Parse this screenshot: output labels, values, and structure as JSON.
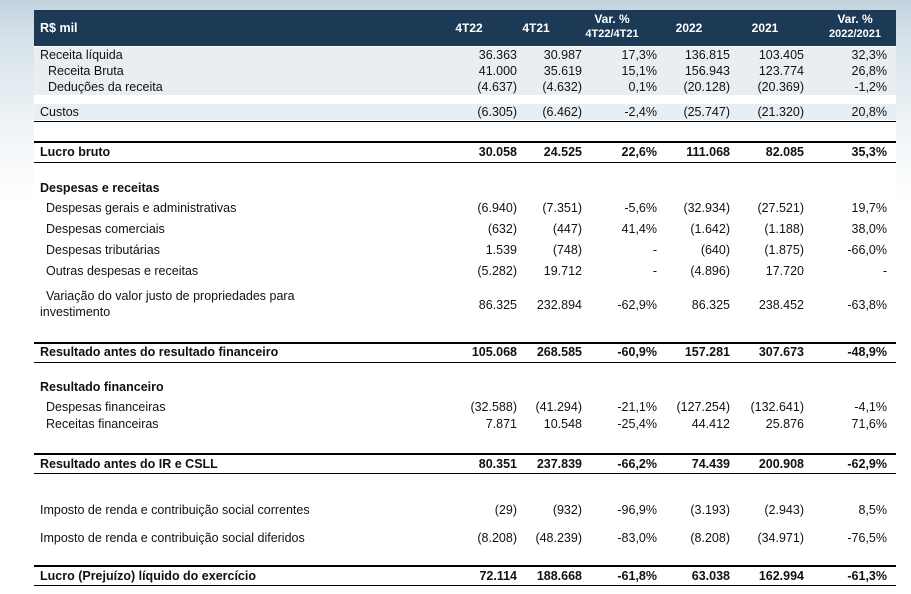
{
  "header": {
    "label": "R$ mil",
    "col1": "4T22",
    "col2": "4T21",
    "col3a": "Var. %",
    "col3b": "4T22/4T21",
    "col4": "2022",
    "col5": "2021",
    "col6a": "Var. %",
    "col6b": "2022/2021"
  },
  "rows": [
    {
      "label": "Receita líquida",
      "v": [
        "36.363",
        "30.987",
        "17,3%",
        "136.815",
        "103.405",
        "32,3%"
      ]
    },
    {
      "label": "Receita Bruta",
      "v": [
        "41.000",
        "35.619",
        "15,1%",
        "156.943",
        "123.774",
        "26,8%"
      ]
    },
    {
      "label": "Deduções da receita",
      "v": [
        "(4.637)",
        "(4.632)",
        "0,1%",
        "(20.128)",
        "(20.369)",
        "-1,2%"
      ]
    },
    {
      "label": "Custos",
      "v": [
        "(6.305)",
        "(6.462)",
        "-2,4%",
        "(25.747)",
        "(21.320)",
        "20,8%"
      ]
    },
    {
      "label": "Lucro bruto",
      "v": [
        "30.058",
        "24.525",
        "22,6%",
        "111.068",
        "82.085",
        "35,3%"
      ]
    },
    {
      "label": "Despesas e receitas",
      "v": [
        "",
        "",
        "",
        "",
        "",
        ""
      ]
    },
    {
      "label": "Despesas gerais e administrativas",
      "v": [
        "(6.940)",
        "(7.351)",
        "-5,6%",
        "(32.934)",
        "(27.521)",
        "19,7%"
      ]
    },
    {
      "label": "Despesas comerciais",
      "v": [
        "(632)",
        "(447)",
        "41,4%",
        "(1.642)",
        "(1.188)",
        "38,0%"
      ]
    },
    {
      "label": "Despesas tributárias",
      "v": [
        "1.539",
        "(748)",
        "-",
        "(640)",
        "(1.875)",
        "-66,0%"
      ]
    },
    {
      "label": "Outras despesas e receitas",
      "v": [
        "(5.282)",
        "19.712",
        "-",
        "(4.896)",
        "17.720",
        "-"
      ]
    },
    {
      "label": "Variação do valor justo de propriedades para",
      "label2": "investimento",
      "v": [
        "86.325",
        "232.894",
        "-62,9%",
        "86.325",
        "238.452",
        "-63,8%"
      ]
    },
    {
      "label": "Resultado antes do resultado financeiro",
      "v": [
        "105.068",
        "268.585",
        "-60,9%",
        "157.281",
        "307.673",
        "-48,9%"
      ]
    },
    {
      "label": "Resultado financeiro",
      "v": [
        "",
        "",
        "",
        "",
        "",
        ""
      ]
    },
    {
      "label": "Despesas financeiras",
      "v": [
        "(32.588)",
        "(41.294)",
        "-21,1%",
        "(127.254)",
        "(132.641)",
        "-4,1%"
      ]
    },
    {
      "label": "Receitas financeiras",
      "v": [
        "7.871",
        "10.548",
        "-25,4%",
        "44.412",
        "25.876",
        "71,6%"
      ]
    },
    {
      "label": "Resultado antes do IR e CSLL",
      "v": [
        "80.351",
        "237.839",
        "-66,2%",
        "74.439",
        "200.908",
        "-62,9%"
      ]
    },
    {
      "label": "Imposto de renda e contribuição social correntes",
      "v": [
        "(29)",
        "(932)",
        "-96,9%",
        "(3.193)",
        "(2.943)",
        "8,5%"
      ]
    },
    {
      "label": "Imposto de renda e contribuição social diferidos",
      "v": [
        "(8.208)",
        "(48.239)",
        "-83,0%",
        "(8.208)",
        "(34.971)",
        "-76,5%"
      ]
    },
    {
      "label": "Lucro (Prejuízo) líquido do exercício",
      "v": [
        "72.114",
        "188.668",
        "-61,8%",
        "63.038",
        "162.994",
        "-61,3%"
      ]
    }
  ]
}
